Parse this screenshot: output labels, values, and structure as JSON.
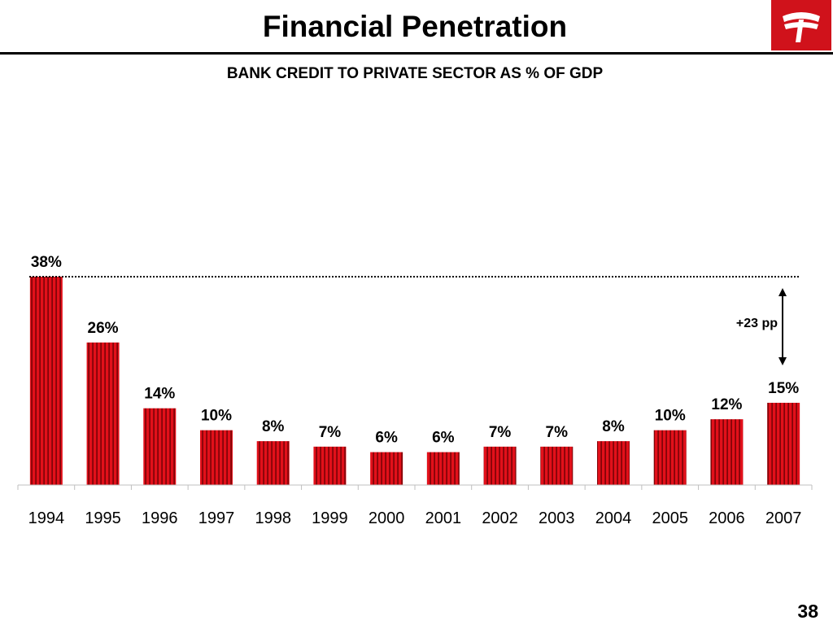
{
  "slide": {
    "title": "Financial Penetration",
    "subtitle": "BANK CREDIT TO PRIVATE SECTOR AS % OF GDP",
    "page_number": "38"
  },
  "logo": {
    "icon": "bank-logo-icon",
    "color": "#d0121b"
  },
  "colors": {
    "bar": "#e2101a",
    "bar_stripe": "#6a0004",
    "axis": "#bfbfbf"
  },
  "chart_data": {
    "type": "bar",
    "title": "BANK CREDIT TO PRIVATE SECTOR AS % OF GDP",
    "categories": [
      "1994",
      "1995",
      "1996",
      "1997",
      "1998",
      "1999",
      "2000",
      "2001",
      "2002",
      "2003",
      "2004",
      "2005",
      "2006",
      "2007"
    ],
    "values": [
      38,
      26,
      14,
      10,
      8,
      7,
      6,
      6,
      7,
      7,
      8,
      10,
      12,
      15
    ],
    "data_labels": [
      "38%",
      "26%",
      "14%",
      "10%",
      "8%",
      "7%",
      "6%",
      "6%",
      "7%",
      "7%",
      "8%",
      "10%",
      "12%",
      "15%"
    ],
    "ylim": [
      0,
      38
    ],
    "grid": false,
    "legend": "none",
    "annotations": [
      {
        "type": "reference-line",
        "style": "dotted",
        "y": 38
      },
      {
        "type": "double-arrow",
        "from": 15,
        "to": 38,
        "label": "+23 pp"
      }
    ]
  }
}
